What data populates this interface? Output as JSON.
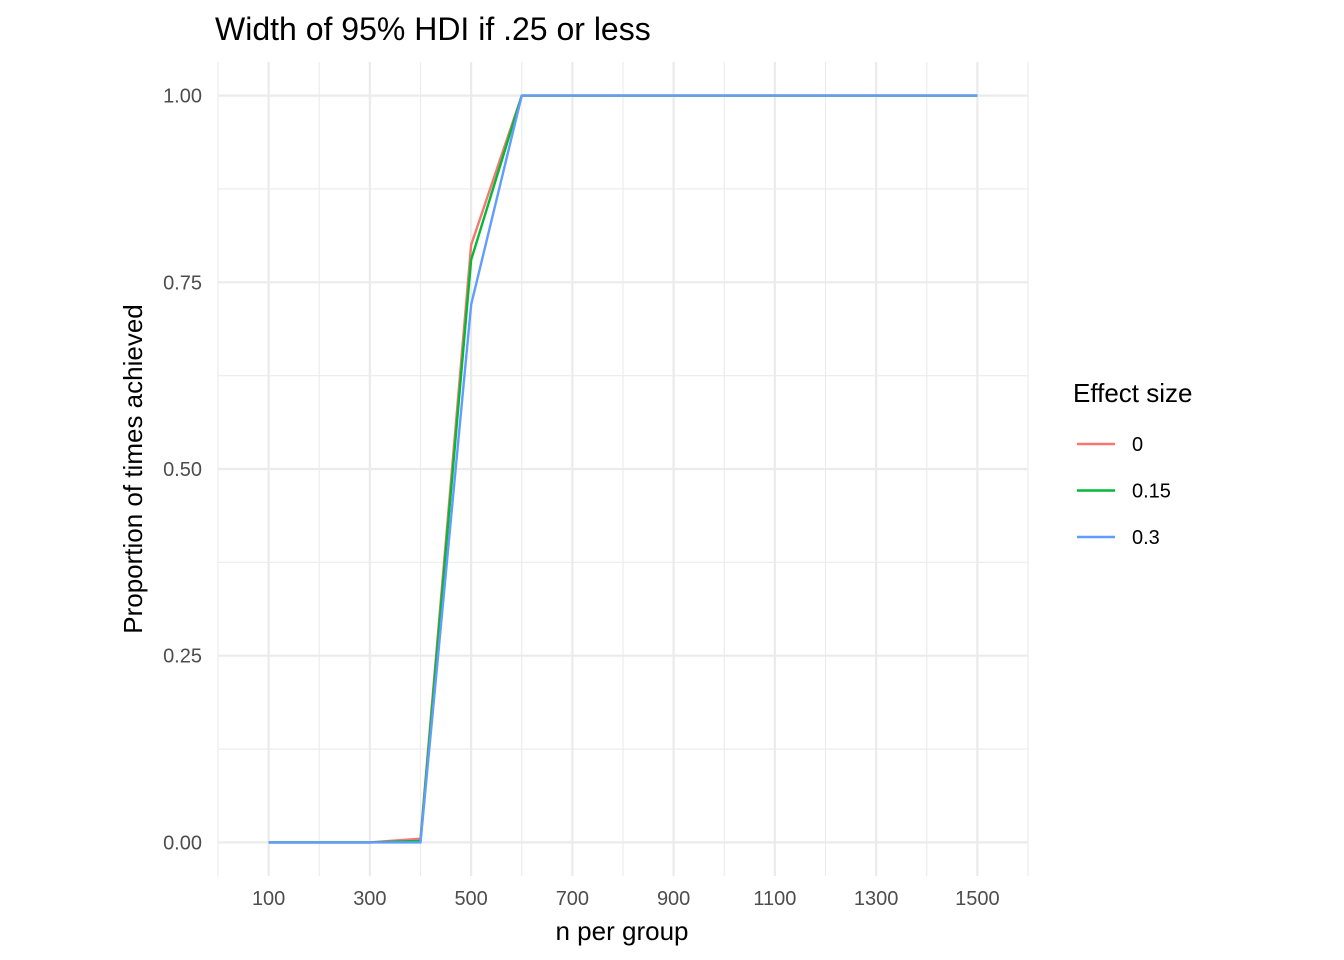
{
  "chart_data": {
    "type": "line",
    "title": "Width of 95% HDI if .25 or less",
    "xlabel": "n per group",
    "ylabel": "Proportion of times achieved",
    "xlim": [
      0,
      1600
    ],
    "ylim": [
      -0.045,
      1.045
    ],
    "x_ticks": [
      100,
      300,
      500,
      700,
      900,
      1100,
      1300,
      1500
    ],
    "y_ticks": [
      0.0,
      0.25,
      0.5,
      0.75,
      1.0
    ],
    "y_tick_labels": [
      "0.00",
      "0.25",
      "0.50",
      "0.75",
      "1.00"
    ],
    "x": [
      100,
      200,
      300,
      400,
      500,
      600,
      700,
      800,
      900,
      1000,
      1100,
      1200,
      1300,
      1400,
      1500
    ],
    "legend_title": "Effect size",
    "legend_position": "right",
    "grid": true,
    "series": [
      {
        "name": "0",
        "color": "#F8766D",
        "values": [
          0,
          0,
          0,
          0.005,
          0.8,
          1,
          1,
          1,
          1,
          1,
          1,
          1,
          1,
          1,
          1
        ]
      },
      {
        "name": "0.15",
        "color": "#00BA38",
        "values": [
          0,
          0,
          0,
          0.002,
          0.78,
          1,
          1,
          1,
          1,
          1,
          1,
          1,
          1,
          1,
          1
        ]
      },
      {
        "name": "0.3",
        "color": "#619CFF",
        "values": [
          0,
          0,
          0,
          0,
          0.72,
          1,
          1,
          1,
          1,
          1,
          1,
          1,
          1,
          1,
          1
        ]
      }
    ]
  }
}
